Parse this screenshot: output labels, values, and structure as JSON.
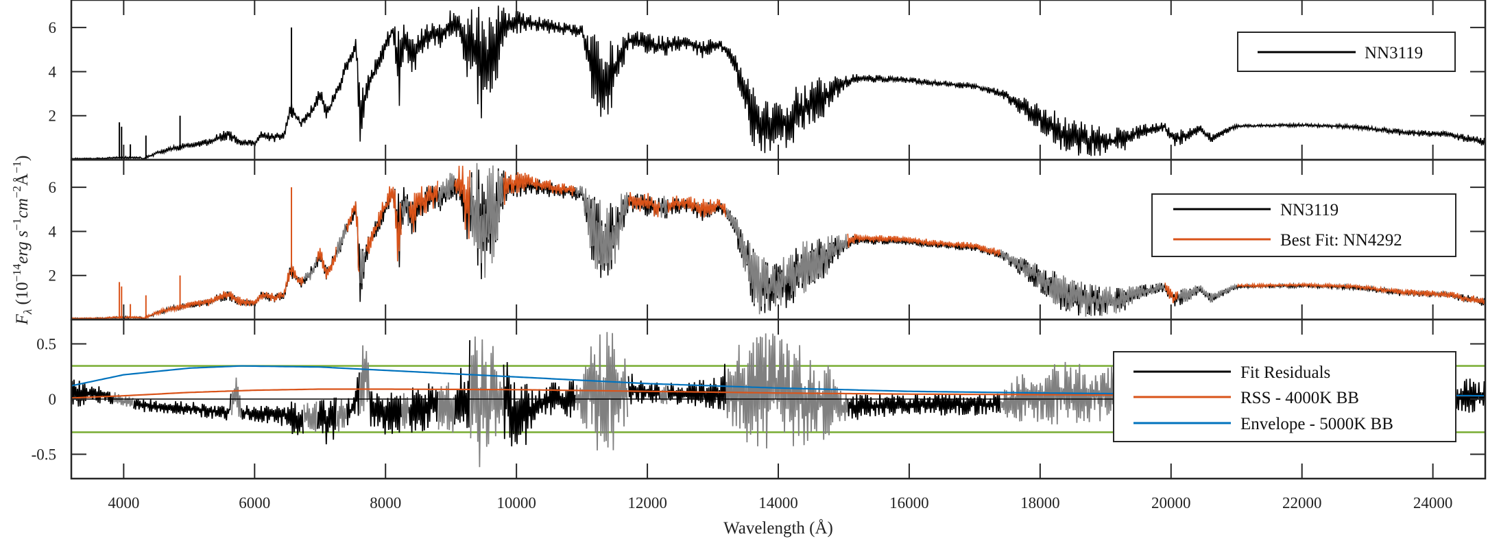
{
  "chart_data": {
    "type": "line",
    "xlabel": "Wavelength (Å)",
    "ylabel": {
      "symbol": "F",
      "sub": "λ",
      "open": " (10",
      "exp1": "−14",
      "unit1": "erg s",
      "exp2": "−1",
      "unit2": "cm",
      "exp3": "−2",
      "unit3": "Å",
      "exp4": "−1",
      "close": ")"
    },
    "xlim": [
      3200,
      24800
    ],
    "xticks": [
      4000,
      6000,
      8000,
      10000,
      12000,
      14000,
      16000,
      18000,
      20000,
      22000,
      24000
    ],
    "xtick_labels": [
      "4000",
      "6000",
      "8000",
      "10000",
      "12000",
      "14000",
      "16000",
      "18000",
      "20000",
      "22000",
      "24000"
    ],
    "colors": {
      "observed": "#000000",
      "fit": "#D95319",
      "masked": "#808080",
      "rss": "#D95319",
      "envelope": "#0072BD",
      "threshold": "#77AC30"
    },
    "panels": [
      {
        "ylim": [
          0,
          7.25
        ],
        "yticks": [
          2,
          4,
          6
        ],
        "ytick_labels": [
          "2",
          "4",
          "6"
        ],
        "legend": {
          "position": "top-right",
          "entries": [
            {
              "label": "NN3119",
              "color": "#000000"
            }
          ]
        }
      },
      {
        "ylim": [
          0,
          7.25
        ],
        "yticks": [
          2,
          4,
          6
        ],
        "ytick_labels": [
          "2",
          "4",
          "6"
        ],
        "legend": {
          "position": "top-right",
          "entries": [
            {
              "label": "NN3119",
              "color": "#000000"
            },
            {
              "label": "Best Fit: NN4292",
              "color": "#D95319"
            }
          ]
        }
      },
      {
        "ylim": [
          -0.72,
          0.72
        ],
        "yticks": [
          -0.5,
          0,
          0.5
        ],
        "ytick_labels": [
          "-0.5",
          "0",
          "0.5"
        ],
        "thresholds": [
          0.3,
          -0.3
        ],
        "legend": {
          "position": "right",
          "entries": [
            {
              "label": "Fit Residuals",
              "color": "#000000"
            },
            {
              "label": "RSS - 4000K BB",
              "color": "#D95319"
            },
            {
              "label": "Envelope - 5000K BB",
              "color": "#0072BD"
            }
          ]
        }
      }
    ],
    "spectrum_envelope_columns": [
      "wavelength",
      "flux_min",
      "flux_max"
    ],
    "spectrum_envelope": [
      [
        3200,
        0.02,
        0.08
      ],
      [
        3700,
        0.03,
        0.09
      ],
      [
        3900,
        0.05,
        0.15
      ],
      [
        4250,
        0.06,
        0.14
      ],
      [
        4300,
        0.0,
        0.08
      ],
      [
        4500,
        0.2,
        0.4
      ],
      [
        4800,
        0.4,
        0.7
      ],
      [
        5000,
        0.5,
        0.8
      ],
      [
        5300,
        0.6,
        1.0
      ],
      [
        5600,
        0.9,
        1.4
      ],
      [
        5800,
        0.6,
        1.0
      ],
      [
        6000,
        0.6,
        0.9
      ],
      [
        6100,
        0.9,
        1.3
      ],
      [
        6300,
        0.8,
        1.2
      ],
      [
        6450,
        0.9,
        1.3
      ],
      [
        6550,
        2.0,
        2.7
      ],
      [
        6700,
        1.4,
        1.9
      ],
      [
        6900,
        1.9,
        2.6
      ],
      [
        7000,
        2.6,
        3.4
      ],
      [
        7100,
        1.8,
        2.4
      ],
      [
        7200,
        2.3,
        3.0
      ],
      [
        7400,
        3.8,
        4.6
      ],
      [
        7550,
        4.9,
        5.6
      ],
      [
        7600,
        0.3,
        3.5
      ],
      [
        7700,
        2.6,
        3.6
      ],
      [
        7900,
        4.0,
        5.0
      ],
      [
        8100,
        5.4,
        6.3
      ],
      [
        8200,
        2.1,
        6.0
      ],
      [
        8300,
        4.8,
        6.2
      ],
      [
        8400,
        3.4,
        5.6
      ],
      [
        8500,
        4.6,
        6.0
      ],
      [
        8800,
        5.0,
        6.4
      ],
      [
        9100,
        5.6,
        7.0
      ],
      [
        9300,
        3.0,
        7.1
      ],
      [
        9500,
        1.0,
        7.2
      ],
      [
        9700,
        3.0,
        7.1
      ],
      [
        9850,
        5.6,
        6.9
      ],
      [
        10200,
        5.8,
        6.6
      ],
      [
        10600,
        5.7,
        6.3
      ],
      [
        11000,
        5.5,
        6.1
      ],
      [
        11150,
        2.5,
        5.8
      ],
      [
        11350,
        1.2,
        5.6
      ],
      [
        11550,
        2.8,
        5.7
      ],
      [
        11700,
        5.0,
        5.9
      ],
      [
        12200,
        4.6,
        5.7
      ],
      [
        12600,
        5.0,
        5.6
      ],
      [
        12900,
        4.5,
        5.5
      ],
      [
        13100,
        5.0,
        5.5
      ],
      [
        13300,
        4.2,
        5.0
      ],
      [
        13500,
        1.8,
        4.2
      ],
      [
        13650,
        0.2,
        3.2
      ],
      [
        13900,
        0.3,
        2.6
      ],
      [
        14100,
        0.5,
        3.0
      ],
      [
        14400,
        1.0,
        3.6
      ],
      [
        14700,
        1.8,
        3.8
      ],
      [
        14950,
        3.0,
        3.9
      ],
      [
        15200,
        3.5,
        3.9
      ],
      [
        15800,
        3.5,
        3.8
      ],
      [
        16500,
        3.3,
        3.6
      ],
      [
        17000,
        3.2,
        3.5
      ],
      [
        17400,
        2.8,
        3.2
      ],
      [
        17800,
        1.8,
        2.8
      ],
      [
        18100,
        1.0,
        2.4
      ],
      [
        18400,
        0.2,
        2.0
      ],
      [
        18800,
        0.1,
        1.6
      ],
      [
        19200,
        0.2,
        1.5
      ],
      [
        19500,
        0.9,
        1.6
      ],
      [
        19900,
        1.3,
        1.7
      ],
      [
        20050,
        0.6,
        1.3
      ],
      [
        20300,
        0.8,
        1.5
      ],
      [
        20450,
        1.3,
        1.6
      ],
      [
        20600,
        0.7,
        1.2
      ],
      [
        20800,
        1.1,
        1.4
      ],
      [
        21000,
        1.45,
        1.6
      ],
      [
        22000,
        1.5,
        1.65
      ],
      [
        22800,
        1.4,
        1.6
      ],
      [
        23500,
        1.1,
        1.4
      ],
      [
        24200,
        1.0,
        1.3
      ],
      [
        24800,
        0.6,
        1.0
      ]
    ],
    "emission_lines": [
      [
        3934,
        1.7
      ],
      [
        3968,
        1.5
      ],
      [
        4102,
        0.7
      ],
      [
        4340,
        1.1
      ],
      [
        4861,
        2.0
      ],
      [
        6563,
        6.0
      ]
    ],
    "fit_masked_regions": [
      [
        6750,
        6950
      ],
      [
        7250,
        7400
      ],
      [
        7600,
        7700
      ],
      [
        8250,
        8350
      ],
      [
        8800,
        9050
      ],
      [
        9300,
        9800
      ],
      [
        10900,
        11700
      ],
      [
        12200,
        12300
      ],
      [
        13200,
        15050
      ],
      [
        17400,
        19900
      ],
      [
        20100,
        21000
      ]
    ],
    "residual_masked_regions": [
      [
        3850,
        4150
      ],
      [
        5650,
        5800
      ],
      [
        6750,
        6950
      ],
      [
        7250,
        7400
      ],
      [
        7600,
        7750
      ],
      [
        8250,
        8350
      ],
      [
        8800,
        9050
      ],
      [
        9300,
        9800
      ],
      [
        10900,
        11700
      ],
      [
        12200,
        12300
      ],
      [
        13200,
        15050
      ],
      [
        17400,
        20800
      ]
    ],
    "residual_envelope": [
      [
        3200,
        -0.08,
        0.2
      ],
      [
        3700,
        -0.05,
        0.12
      ],
      [
        3900,
        -0.05,
        0.05
      ],
      [
        4300,
        -0.12,
        0.0
      ],
      [
        5000,
        -0.15,
        -0.02
      ],
      [
        5600,
        -0.2,
        -0.05
      ],
      [
        5700,
        -0.1,
        0.27
      ],
      [
        5800,
        -0.2,
        -0.05
      ],
      [
        6500,
        -0.25,
        -0.05
      ],
      [
        6600,
        -0.35,
        0.0
      ],
      [
        7000,
        -0.3,
        0.0
      ],
      [
        7100,
        -0.45,
        0.05
      ],
      [
        7500,
        -0.2,
        0.0
      ],
      [
        7700,
        -0.1,
        0.65
      ],
      [
        7800,
        -0.3,
        0.05
      ],
      [
        8200,
        -0.35,
        0.1
      ],
      [
        8600,
        -0.3,
        0.15
      ],
      [
        9000,
        -0.3,
        0.2
      ],
      [
        9300,
        -0.5,
        0.55
      ],
      [
        9500,
        -0.7,
        0.6
      ],
      [
        9800,
        -0.4,
        0.4
      ],
      [
        10000,
        -0.55,
        0.2
      ],
      [
        10500,
        -0.15,
        0.15
      ],
      [
        11000,
        -0.2,
        0.2
      ],
      [
        11200,
        -0.5,
        0.65
      ],
      [
        11400,
        -0.55,
        0.7
      ],
      [
        11650,
        -0.3,
        0.4
      ],
      [
        11800,
        -0.05,
        0.2
      ],
      [
        12500,
        -0.05,
        0.15
      ],
      [
        13100,
        -0.1,
        0.2
      ],
      [
        13300,
        -0.4,
        0.5
      ],
      [
        13800,
        -0.45,
        0.65
      ],
      [
        14300,
        -0.45,
        0.5
      ],
      [
        14800,
        -0.35,
        0.3
      ],
      [
        15000,
        -0.2,
        0.05
      ],
      [
        16000,
        -0.15,
        0.05
      ],
      [
        17000,
        -0.15,
        0.05
      ],
      [
        17400,
        -0.15,
        0.05
      ],
      [
        17600,
        -0.2,
        0.2
      ],
      [
        18200,
        -0.25,
        0.35
      ],
      [
        19000,
        -0.2,
        0.3
      ],
      [
        19800,
        -0.25,
        0.3
      ],
      [
        20500,
        -0.3,
        0.3
      ],
      [
        20900,
        -0.1,
        0.1
      ],
      [
        22000,
        -0.12,
        0.1
      ],
      [
        23000,
        -0.1,
        0.1
      ],
      [
        24800,
        -0.15,
        0.2
      ]
    ],
    "rss_4000K_bb": [
      [
        3200,
        0.01
      ],
      [
        4000,
        0.03
      ],
      [
        5000,
        0.06
      ],
      [
        6000,
        0.08
      ],
      [
        7000,
        0.09
      ],
      [
        8000,
        0.09
      ],
      [
        10000,
        0.085
      ],
      [
        12000,
        0.07
      ],
      [
        14000,
        0.055
      ],
      [
        16000,
        0.045
      ],
      [
        18000,
        0.04
      ],
      [
        20000,
        0.035
      ],
      [
        24800,
        0.03
      ]
    ],
    "envelope_5000K_bb": [
      [
        3200,
        0.12
      ],
      [
        4000,
        0.22
      ],
      [
        5000,
        0.28
      ],
      [
        5800,
        0.3
      ],
      [
        7000,
        0.29
      ],
      [
        8000,
        0.26
      ],
      [
        10000,
        0.2
      ],
      [
        12000,
        0.14
      ],
      [
        14000,
        0.1
      ],
      [
        16000,
        0.07
      ],
      [
        18000,
        0.055
      ],
      [
        20000,
        0.045
      ],
      [
        22000,
        0.04
      ],
      [
        24800,
        0.03
      ]
    ]
  }
}
